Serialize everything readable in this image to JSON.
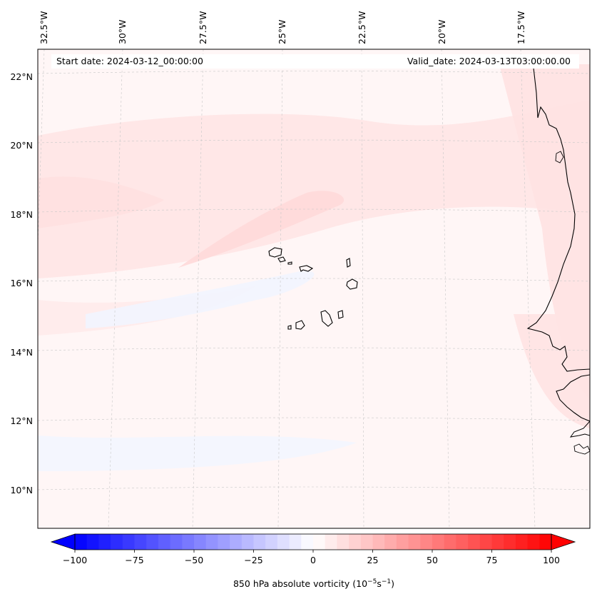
{
  "map": {
    "start_label": "Start date: 2024-03-12_00:00:00",
    "valid_label": "Valid_date: 2024-03-13T03:00:00.00",
    "lon_labels": [
      "32.5°W",
      "30°W",
      "27.5°W",
      "25°W",
      "22.5°W",
      "20°W",
      "17.5°W"
    ],
    "lat_labels": [
      "22°N",
      "20°N",
      "18°N",
      "16°N",
      "14°N",
      "12°N",
      "10°N"
    ]
  },
  "colorbar": {
    "label_main": "850 hPa absolute vorticity (10",
    "label_exp1": "−5",
    "label_mid": "s",
    "label_exp2": "−1",
    "label_end": ")",
    "ticks": [
      "−100",
      "−75",
      "−50",
      "−25",
      "0",
      "25",
      "50",
      "75",
      "100"
    ],
    "min": -100,
    "max": 100,
    "low_color": "#0000ff",
    "high_color": "#ff0000"
  },
  "colors": {
    "background_field": "#fff6f6",
    "light_red": "#ffe6e6",
    "light_blue": "#f4f7ff",
    "coastline": "#000000"
  }
}
